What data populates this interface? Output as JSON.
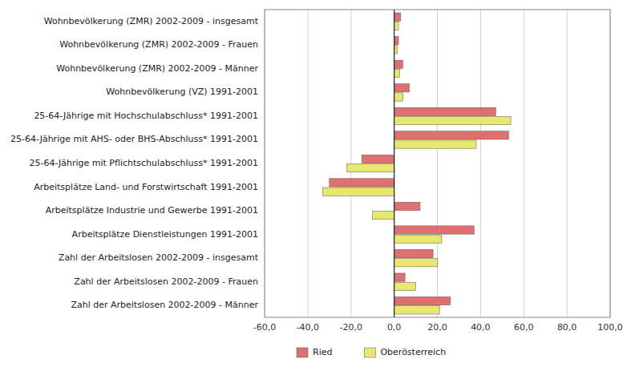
{
  "chart_data": {
    "type": "bar",
    "orientation": "horizontal",
    "categories": [
      "Wohnbevölkerung (ZMR) 2002-2009 - insgesamt",
      "Wohnbevölkerung (ZMR) 2002-2009 - Frauen",
      "Wohnbevölkerung (ZMR) 2002-2009 - Männer",
      "Wohnbevölkerung (VZ) 1991-2001",
      "25-64-Jährige mit Hochschulabschluss* 1991-2001",
      "25-64-Jährige mit AHS- oder BHS-Abschluss* 1991-2001",
      "25-64-Jährige mit Pflichtschulabschluss* 1991-2001",
      "Arbeitsplätze Land- und Forstwirtschaft 1991-2001",
      "Arbeitsplätze Industrie und Gewerbe 1991-2001",
      "Arbeitsplätze Dienstleistungen 1991-2001",
      "Zahl der Arbeitslosen 2002-2009 - insgesamt",
      "Zahl der Arbeitslosen 2002-2009 - Frauen",
      "Zahl der Arbeitslosen 2002-2009 - Männer"
    ],
    "series": [
      {
        "name": "Ried",
        "color": "#e07070",
        "values": [
          3.0,
          2.0,
          4.0,
          7.0,
          47.0,
          53.0,
          -15.0,
          -30.0,
          12.0,
          37.0,
          18.0,
          5.0,
          26.0
        ]
      },
      {
        "name": "Oberösterreich",
        "color": "#e8e870",
        "values": [
          2.0,
          1.5,
          2.5,
          4.0,
          54.0,
          38.0,
          -22.0,
          -33.0,
          -10.0,
          22.0,
          20.0,
          10.0,
          21.0
        ]
      }
    ],
    "xlim": [
      -60,
      100
    ],
    "xticks": [
      {
        "value": -60,
        "label": "-60,0"
      },
      {
        "value": -40,
        "label": "-40,0"
      },
      {
        "value": -20,
        "label": "-20,0"
      },
      {
        "value": 0,
        "label": "0,0"
      },
      {
        "value": 20,
        "label": "20,0"
      },
      {
        "value": 40,
        "label": "40,0"
      },
      {
        "value": 60,
        "label": "60,0"
      },
      {
        "value": 80,
        "label": "80,0"
      },
      {
        "value": 100,
        "label": "100,0"
      }
    ],
    "grid": true,
    "legend": "bottom"
  }
}
